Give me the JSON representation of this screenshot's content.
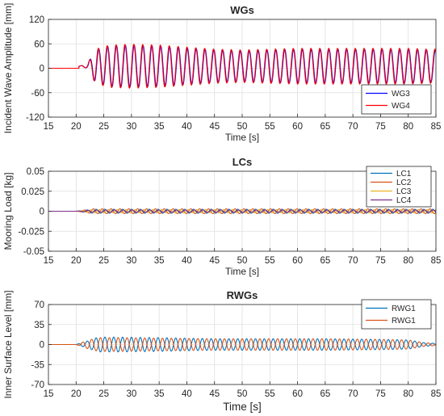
{
  "chart_data": [
    {
      "type": "line",
      "title": "WGs",
      "xlabel": "Time [s]",
      "ylabel": "Incident Wave Amplitude [mm]",
      "xlim": [
        15,
        85
      ],
      "ylim": [
        -120,
        120
      ],
      "xticks": [
        "15",
        "20",
        "25",
        "30",
        "35",
        "40",
        "45",
        "50",
        "55",
        "60",
        "65",
        "70",
        "75",
        "80",
        "85"
      ],
      "yticks": [
        "-120",
        "-60",
        "0",
        "60",
        "120"
      ],
      "grid": true,
      "legend_position": "bottom-right",
      "series": [
        {
          "name": "WG3",
          "color": "#0000ff",
          "signal": {
            "onset": 20.5,
            "period": 1.6,
            "envelope_t": [
              15,
              20.5,
              22,
              23.5,
              26,
              30,
              35,
              40,
              45,
              50,
              55,
              60,
              65,
              70,
              75,
              80,
              83.5,
              85
            ],
            "envelope_a": [
              0,
              0,
              5,
              40,
              50,
              52,
              50,
              45,
              40,
              38,
              40,
              42,
              42,
              42,
              42,
              42,
              40,
              40
            ],
            "offset": 5,
            "phase": 0
          }
        },
        {
          "name": "WG4",
          "color": "#ff0000",
          "signal": {
            "onset": 20.5,
            "period": 1.6,
            "envelope_t": [
              15,
              20.5,
              22,
              23.5,
              26,
              30,
              35,
              40,
              45,
              50,
              55,
              60,
              65,
              70,
              75,
              80,
              83.5,
              85
            ],
            "envelope_a": [
              0,
              0,
              5,
              42,
              52,
              54,
              52,
              47,
              42,
              40,
              42,
              44,
              44,
              44,
              44,
              44,
              42,
              42
            ],
            "offset": 5,
            "phase": 0.05
          }
        }
      ]
    },
    {
      "type": "line",
      "title": "LCs",
      "xlabel": "Time [s]",
      "ylabel": "Mooring Load [kg]",
      "xlim": [
        15,
        85
      ],
      "ylim": [
        -0.05,
        0.05
      ],
      "xticks": [
        "15",
        "20",
        "25",
        "30",
        "35",
        "40",
        "45",
        "50",
        "55",
        "60",
        "65",
        "70",
        "75",
        "80",
        "85"
      ],
      "yticks": [
        "-0.05",
        "-0.025",
        "0",
        "0.025",
        "0.05"
      ],
      "grid": true,
      "legend_position": "top-right",
      "series": [
        {
          "name": "LC1",
          "color": "#0072bd",
          "signal": {
            "onset": 20,
            "period": 1.6,
            "envelope_t": [
              15,
              20,
              23,
              85
            ],
            "envelope_a": [
              0,
              0,
              0.0025,
              0.0025
            ],
            "offset": 0,
            "phase": 0
          }
        },
        {
          "name": "LC2",
          "color": "#d95319",
          "signal": {
            "onset": 20,
            "period": 1.6,
            "envelope_t": [
              15,
              20,
              23,
              85
            ],
            "envelope_a": [
              0,
              0,
              0.003,
              0.003
            ],
            "offset": 0,
            "phase": 0.3
          }
        },
        {
          "name": "LC3",
          "color": "#edb120",
          "signal": {
            "onset": 20,
            "period": 1.6,
            "envelope_t": [
              15,
              20,
              23,
              85
            ],
            "envelope_a": [
              0,
              0,
              0.002,
              0.002
            ],
            "offset": 0,
            "phase": 0.6
          }
        },
        {
          "name": "LC4",
          "color": "#7e2f8e",
          "signal": {
            "onset": 20,
            "period": 1.6,
            "envelope_t": [
              15,
              20,
              23,
              85
            ],
            "envelope_a": [
              0,
              0,
              0.0015,
              0.0015
            ],
            "offset": 0,
            "phase": 0.9
          }
        }
      ]
    },
    {
      "type": "line",
      "title": "RWGs",
      "xlabel": "Time [s]",
      "ylabel": "Inner Surface Level [mm]",
      "xlim": [
        15,
        85
      ],
      "ylim": [
        -70,
        70
      ],
      "xticks": [
        "15",
        "20",
        "25",
        "30",
        "35",
        "40",
        "45",
        "50",
        "55",
        "60",
        "65",
        "70",
        "75",
        "80",
        "85"
      ],
      "yticks": [
        "-70",
        "-35",
        "0",
        "35",
        "70"
      ],
      "grid": true,
      "legend_position": "top-right",
      "series": [
        {
          "name": "RWG1",
          "color": "#0072bd",
          "signal": {
            "onset": 20,
            "period": 1.6,
            "envelope_t": [
              15,
              20,
              22,
              24,
              28,
              35,
              45,
              55,
              65,
              75,
              80,
              83,
              85
            ],
            "envelope_a": [
              0,
              0,
              6,
              13,
              13,
              12,
              10,
              10,
              10,
              9,
              8,
              3,
              2
            ],
            "offset": 0,
            "phase": 0
          }
        },
        {
          "name": "RWG1",
          "color": "#d95319",
          "signal": {
            "onset": 20,
            "period": 1.6,
            "envelope_t": [
              15,
              20,
              22,
              24,
              28,
              35,
              45,
              55,
              65,
              75,
              80,
              83,
              85
            ],
            "envelope_a": [
              0,
              0,
              7,
              12,
              12,
              11,
              10,
              10,
              10,
              9,
              8,
              3,
              2
            ],
            "offset": 0,
            "phase": 0.5
          }
        }
      ]
    }
  ]
}
